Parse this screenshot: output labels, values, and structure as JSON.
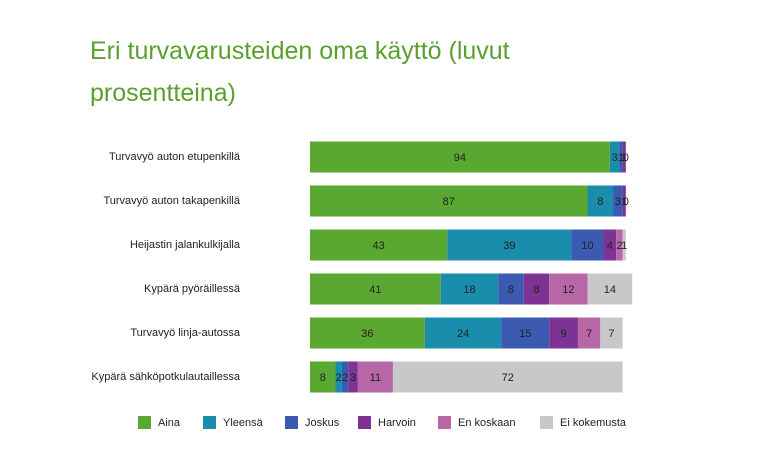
{
  "chart_data": {
    "type": "bar",
    "orientation": "horizontal",
    "stacked": true,
    "title": "Eri turvavarusteiden oma käyttö (luvut prosentteina)",
    "categories": [
      "Turvavyö auton etupenkillä",
      "Turvavyö auton takapenkillä",
      "Heijastin jalankulkijalla",
      "Kypärä pyöräillessä",
      "Turvavyö linja-autossa",
      "Kypärä sähköpotkulautaillessa"
    ],
    "series": [
      {
        "name": "Aina",
        "color": "#5aa832",
        "values": [
          94,
          87,
          43,
          41,
          36,
          8
        ]
      },
      {
        "name": "Yleensä",
        "color": "#1a8cac",
        "values": [
          3,
          8,
          39,
          18,
          24,
          2
        ]
      },
      {
        "name": "Joskus",
        "color": "#3a5bb0",
        "values": [
          1,
          3,
          10,
          8,
          15,
          2
        ]
      },
      {
        "name": "Harvoin",
        "color": "#7d3394",
        "values": [
          1,
          1,
          4,
          8,
          9,
          3
        ]
      },
      {
        "name": "En koskaan",
        "color": "#b867a6",
        "values": [
          0,
          0,
          2,
          12,
          7,
          11
        ]
      },
      {
        "name": "Ei kokemusta",
        "color": "#c8c8c8",
        "values": [
          null,
          null,
          1,
          14,
          7,
          72
        ]
      }
    ],
    "legend": "bottom"
  }
}
